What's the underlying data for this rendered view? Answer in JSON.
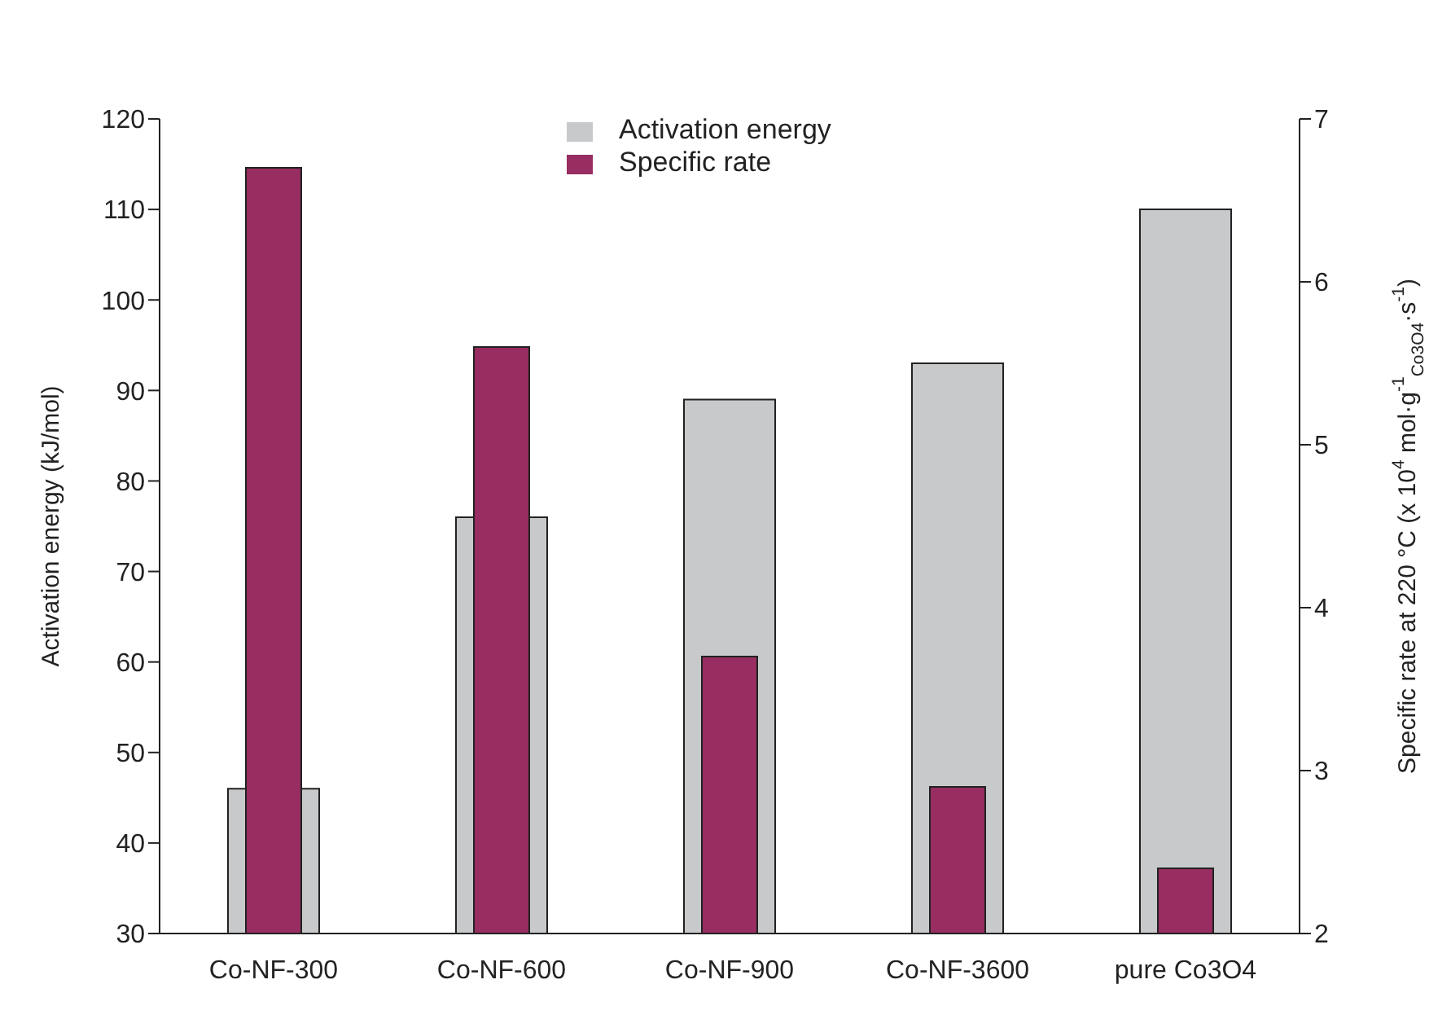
{
  "chart_data": {
    "type": "bar",
    "categories": [
      "Co-NF-300",
      "Co-NF-600",
      "Co-NF-900",
      "Co-NF-3600",
      "pure Co3O4"
    ],
    "series": [
      {
        "name": "Activation energy",
        "color": "#c8c9cb",
        "values": [
          46,
          76,
          89,
          93,
          110
        ]
      },
      {
        "name": "Specific rate",
        "color": "#972d60",
        "values": [
          6.7,
          5.6,
          3.7,
          2.9,
          2.4
        ],
        "axis": "y2"
      }
    ],
    "ylabel": "Activation energy (kJ/mol)",
    "y2label": "Specific rate at 220 °C (x 10$^{4}$ mol·g$^{-1}$$_{Co3O4}$·s$^{-1}$)",
    "ylim": [
      30,
      120
    ],
    "yticks": [
      30,
      40,
      50,
      60,
      70,
      80,
      90,
      100,
      110,
      120
    ],
    "y2lim": [
      2,
      7
    ],
    "y2ticks": [
      2,
      3,
      4,
      5,
      6,
      7
    ],
    "legend": "top"
  }
}
